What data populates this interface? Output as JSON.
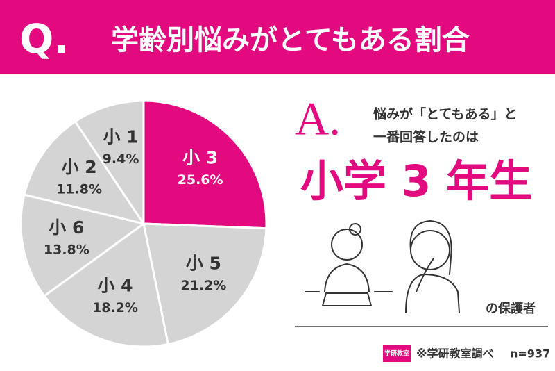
{
  "header": {
    "mark": "Q.",
    "title": "学齢別悩みがとてもある割合"
  },
  "chart_data": {
    "type": "pie",
    "categories": [
      "小 3",
      "小 5",
      "小 4",
      "小 6",
      "小 2",
      "小 1"
    ],
    "values": [
      25.6,
      21.2,
      18.2,
      13.8,
      11.8,
      9.4
    ],
    "value_labels": [
      "25.6%",
      "21.2%",
      "18.2%",
      "13.8%",
      "11.8%",
      "9.4%"
    ],
    "colors": [
      "#e3097f",
      "#d4d4d4",
      "#d4d4d4",
      "#d4d4d4",
      "#d4d4d4",
      "#d4d4d4"
    ],
    "label_colors": [
      "#ffffff",
      "#333333",
      "#333333",
      "#333333",
      "#333333",
      "#333333"
    ]
  },
  "answer": {
    "mark": "A.",
    "lines": [
      "悩みが「とてもある」と",
      "一番回答したのは"
    ],
    "highlight": "小学 3 年生",
    "caption": "の保護者"
  },
  "footer": {
    "logo": "学研教室",
    "source": "※学研教室調べ",
    "n": "n=937"
  }
}
